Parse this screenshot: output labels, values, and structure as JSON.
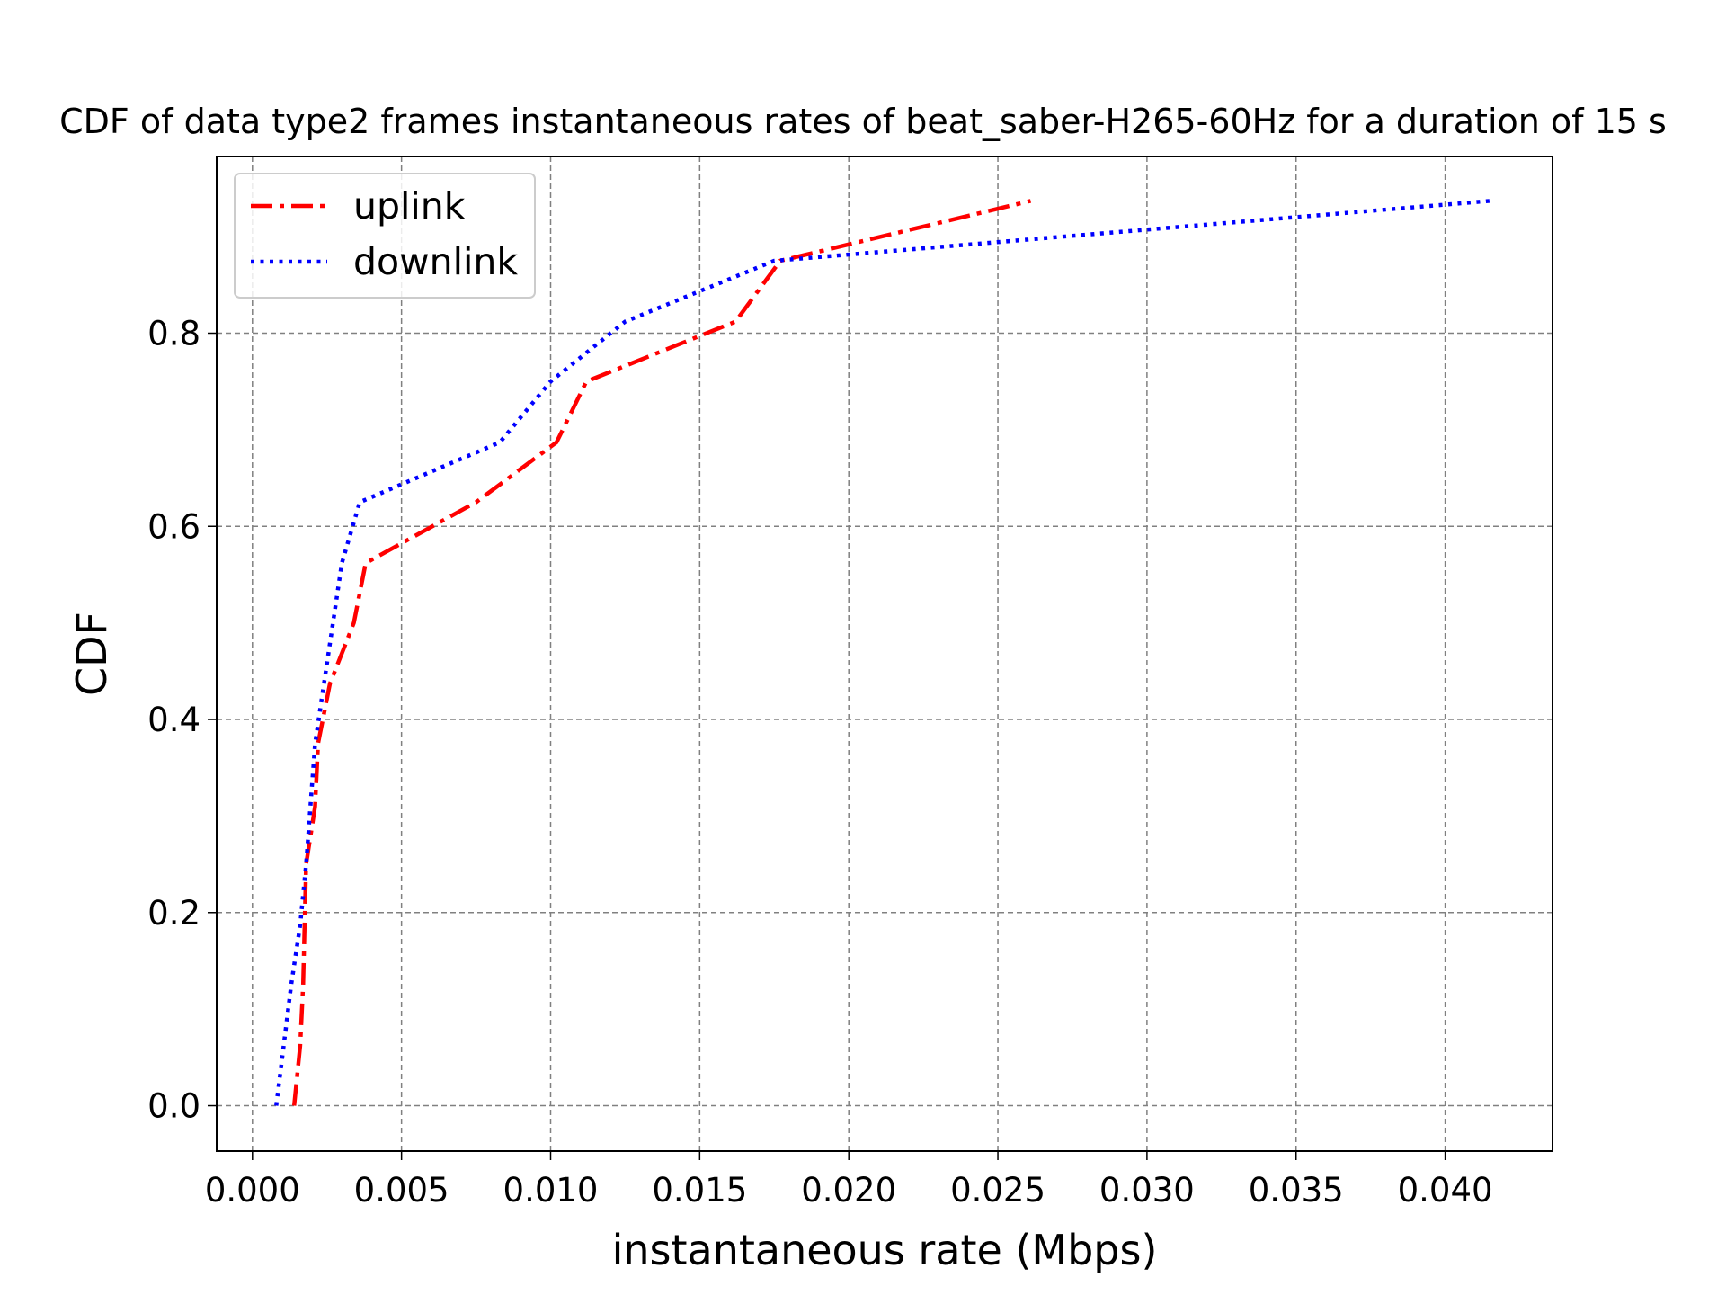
{
  "chart_data": {
    "type": "line",
    "title": "CDF of data type2 frames instantaneous rates of beat_saber-H265-60Hz for a duration of 15 s",
    "xlabel": "instantaneous rate (Mbps)",
    "ylabel": "CDF",
    "xlim": [
      -0.0012,
      0.0436
    ],
    "ylim": [
      -0.047,
      0.983
    ],
    "xticks": [
      0.0,
      0.005,
      0.01,
      0.015,
      0.02,
      0.025,
      0.03,
      0.035,
      0.04
    ],
    "xtick_labels": [
      "0.000",
      "0.005",
      "0.010",
      "0.015",
      "0.020",
      "0.025",
      "0.030",
      "0.035",
      "0.040"
    ],
    "yticks": [
      0.0,
      0.2,
      0.4,
      0.6,
      0.8
    ],
    "ytick_labels": [
      "0.0",
      "0.2",
      "0.4",
      "0.6",
      "0.8"
    ],
    "grid": true,
    "legend_position": "top-left",
    "series": [
      {
        "name": "uplink",
        "color": "#ff0000",
        "style": "dashdot",
        "x": [
          0.0014,
          0.0016,
          0.0017,
          0.0018,
          0.0021,
          0.0022,
          0.0026,
          0.0034,
          0.0038,
          0.0075,
          0.0102,
          0.0112,
          0.0162,
          0.0177,
          0.0261
        ],
        "y": [
          0.0,
          0.062,
          0.125,
          0.25,
          0.31,
          0.375,
          0.437,
          0.5,
          0.562,
          0.625,
          0.687,
          0.75,
          0.812,
          0.875,
          0.937
        ]
      },
      {
        "name": "downlink",
        "color": "#0000ff",
        "style": "dotted",
        "x": [
          0.0008,
          0.0013,
          0.0016,
          0.0018,
          0.0021,
          0.0027,
          0.003,
          0.0036,
          0.0083,
          0.01,
          0.0125,
          0.0175,
          0.0415
        ],
        "y": [
          0.0,
          0.125,
          0.187,
          0.25,
          0.375,
          0.5,
          0.562,
          0.625,
          0.687,
          0.75,
          0.812,
          0.875,
          0.937
        ]
      }
    ]
  }
}
